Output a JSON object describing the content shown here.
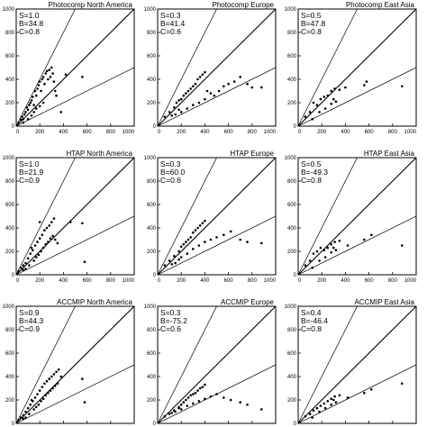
{
  "chart_data": [
    {
      "type": "scatter",
      "title": "Photocomp North America",
      "stats": [
        "S=1.0",
        "B=34.8",
        "C=0.8"
      ],
      "xlim": [
        0,
        1000
      ],
      "ylim": [
        0,
        1000
      ],
      "xticks": [
        "0",
        "200",
        "400",
        "600",
        "800",
        "1000"
      ],
      "yticks": [
        "0",
        "200",
        "400",
        "600",
        "800",
        "1000"
      ],
      "reference_lines": [
        {
          "slope": 2
        },
        {
          "slope": 1
        },
        {
          "slope": 0.5
        }
      ],
      "points": [
        [
          20,
          30
        ],
        [
          40,
          55
        ],
        [
          60,
          60
        ],
        [
          80,
          120
        ],
        [
          90,
          160
        ],
        [
          100,
          140
        ],
        [
          110,
          180
        ],
        [
          120,
          200
        ],
        [
          130,
          220
        ],
        [
          140,
          250
        ],
        [
          150,
          180
        ],
        [
          160,
          300
        ],
        [
          170,
          260
        ],
        [
          180,
          320
        ],
        [
          190,
          350
        ],
        [
          200,
          380
        ],
        [
          210,
          300
        ],
        [
          220,
          400
        ],
        [
          230,
          420
        ],
        [
          240,
          360
        ],
        [
          250,
          450
        ],
        [
          260,
          470
        ],
        [
          270,
          400
        ],
        [
          280,
          480
        ],
        [
          290,
          420
        ],
        [
          300,
          500
        ],
        [
          310,
          450
        ],
        [
          320,
          380
        ],
        [
          330,
          300
        ],
        [
          340,
          260
        ],
        [
          100,
          60
        ],
        [
          130,
          90
        ],
        [
          150,
          120
        ],
        [
          170,
          150
        ],
        [
          200,
          170
        ],
        [
          230,
          200
        ],
        [
          60,
          30
        ],
        [
          50,
          80
        ],
        [
          70,
          100
        ],
        [
          420,
          440
        ],
        [
          380,
          120
        ],
        [
          560,
          420
        ]
      ]
    },
    {
      "type": "scatter",
      "title": "Photocomp Europe",
      "stats": [
        "S=0.3",
        "B=41.4",
        "C=0.6"
      ],
      "xlim": [
        0,
        1000
      ],
      "ylim": [
        0,
        1000
      ],
      "xticks": [
        "0",
        "200",
        "400",
        "600",
        "800",
        "1000"
      ],
      "yticks": [
        "0",
        "200",
        "400",
        "600",
        "800",
        "1000"
      ],
      "reference_lines": [
        {
          "slope": 2
        },
        {
          "slope": 1
        },
        {
          "slope": 0.5
        }
      ],
      "points": [
        [
          60,
          80
        ],
        [
          100,
          120
        ],
        [
          140,
          160
        ],
        [
          160,
          200
        ],
        [
          180,
          220
        ],
        [
          200,
          230
        ],
        [
          220,
          260
        ],
        [
          240,
          280
        ],
        [
          260,
          300
        ],
        [
          280,
          320
        ],
        [
          300,
          340
        ],
        [
          320,
          360
        ],
        [
          340,
          400
        ],
        [
          360,
          420
        ],
        [
          380,
          440
        ],
        [
          400,
          460
        ],
        [
          200,
          120
        ],
        [
          250,
          150
        ],
        [
          300,
          180
        ],
        [
          350,
          200
        ],
        [
          400,
          230
        ],
        [
          420,
          300
        ],
        [
          450,
          280
        ],
        [
          480,
          260
        ],
        [
          520,
          300
        ],
        [
          560,
          340
        ],
        [
          600,
          360
        ],
        [
          650,
          380
        ],
        [
          700,
          420
        ],
        [
          760,
          360
        ],
        [
          800,
          330
        ],
        [
          880,
          330
        ],
        [
          150,
          100
        ],
        [
          120,
          90
        ],
        [
          180,
          140
        ]
      ]
    },
    {
      "type": "scatter",
      "title": "Photocomp East Asia",
      "stats": [
        "S=0.5",
        "B=47.8",
        "C=0.8"
      ],
      "xlim": [
        0,
        1000
      ],
      "ylim": [
        0,
        1000
      ],
      "xticks": [
        "0",
        "200",
        "400",
        "600",
        "800",
        "1000"
      ],
      "yticks": [
        "0",
        "200",
        "400",
        "600",
        "800",
        "1000"
      ],
      "reference_lines": [
        {
          "slope": 2
        },
        {
          "slope": 1
        },
        {
          "slope": 0.5
        }
      ],
      "points": [
        [
          60,
          80
        ],
        [
          100,
          120
        ],
        [
          130,
          200
        ],
        [
          160,
          180
        ],
        [
          190,
          230
        ],
        [
          220,
          250
        ],
        [
          250,
          260
        ],
        [
          280,
          300
        ],
        [
          310,
          320
        ],
        [
          350,
          310
        ],
        [
          180,
          120
        ],
        [
          230,
          150
        ],
        [
          280,
          190
        ],
        [
          320,
          210
        ],
        [
          400,
          330
        ],
        [
          560,
          350
        ],
        [
          580,
          380
        ],
        [
          880,
          340
        ],
        [
          120,
          60
        ],
        [
          300,
          230
        ]
      ]
    },
    {
      "type": "scatter",
      "title": "HTAP North America",
      "stats": [
        "S=1.0",
        "B=21.9",
        "C=0.9"
      ],
      "xlim": [
        0,
        1000
      ],
      "ylim": [
        0,
        1000
      ],
      "xticks": [
        "0",
        "200",
        "400",
        "600",
        "800",
        "1000"
      ],
      "yticks": [
        "0",
        "200",
        "400",
        "600",
        "800",
        "1000"
      ],
      "reference_lines": [
        {
          "slope": 2
        },
        {
          "slope": 1
        },
        {
          "slope": 0.5
        }
      ],
      "points": [
        [
          20,
          30
        ],
        [
          40,
          60
        ],
        [
          60,
          80
        ],
        [
          80,
          100
        ],
        [
          100,
          140
        ],
        [
          120,
          180
        ],
        [
          140,
          210
        ],
        [
          160,
          250
        ],
        [
          180,
          280
        ],
        [
          200,
          310
        ],
        [
          220,
          340
        ],
        [
          240,
          380
        ],
        [
          260,
          400
        ],
        [
          280,
          420
        ],
        [
          300,
          450
        ],
        [
          320,
          480
        ],
        [
          150,
          120
        ],
        [
          170,
          150
        ],
        [
          190,
          170
        ],
        [
          210,
          200
        ],
        [
          230,
          230
        ],
        [
          250,
          260
        ],
        [
          270,
          280
        ],
        [
          290,
          310
        ],
        [
          310,
          330
        ],
        [
          330,
          300
        ],
        [
          350,
          270
        ],
        [
          80,
          50
        ],
        [
          110,
          80
        ],
        [
          60,
          40
        ],
        [
          200,
          450
        ],
        [
          560,
          440
        ],
        [
          460,
          450
        ],
        [
          580,
          110
        ],
        [
          130,
          230
        ]
      ]
    },
    {
      "type": "scatter",
      "title": "HTAP Europe",
      "stats": [
        "S=0.3",
        "B=60.0",
        "C=0.6"
      ],
      "xlim": [
        0,
        1000
      ],
      "ylim": [
        0,
        1000
      ],
      "xticks": [
        "0",
        "200",
        "400",
        "600",
        "800",
        "1000"
      ],
      "yticks": [
        "0",
        "200",
        "400",
        "600",
        "800",
        "1000"
      ],
      "reference_lines": [
        {
          "slope": 2
        },
        {
          "slope": 1
        },
        {
          "slope": 0.5
        }
      ],
      "points": [
        [
          60,
          80
        ],
        [
          100,
          120
        ],
        [
          140,
          160
        ],
        [
          180,
          200
        ],
        [
          200,
          240
        ],
        [
          220,
          260
        ],
        [
          240,
          280
        ],
        [
          260,
          300
        ],
        [
          280,
          320
        ],
        [
          300,
          360
        ],
        [
          320,
          380
        ],
        [
          340,
          400
        ],
        [
          360,
          420
        ],
        [
          380,
          440
        ],
        [
          400,
          460
        ],
        [
          200,
          150
        ],
        [
          250,
          180
        ],
        [
          300,
          220
        ],
        [
          350,
          250
        ],
        [
          400,
          280
        ],
        [
          450,
          300
        ],
        [
          500,
          320
        ],
        [
          560,
          340
        ],
        [
          620,
          370
        ],
        [
          700,
          300
        ],
        [
          760,
          280
        ],
        [
          880,
          270
        ],
        [
          150,
          100
        ],
        [
          120,
          90
        ],
        [
          180,
          130
        ]
      ]
    },
    {
      "type": "scatter",
      "title": "HTAP East Asia",
      "stats": [
        "S=0.5",
        "B=-49.3",
        "C=0.8"
      ],
      "xlim": [
        0,
        1000
      ],
      "ylim": [
        0,
        1000
      ],
      "xticks": [
        "0",
        "200",
        "400",
        "600",
        "800",
        "1000"
      ],
      "yticks": [
        "0",
        "200",
        "400",
        "600",
        "800",
        "1000"
      ],
      "reference_lines": [
        {
          "slope": 2
        },
        {
          "slope": 1
        },
        {
          "slope": 0.5
        }
      ],
      "points": [
        [
          60,
          80
        ],
        [
          100,
          120
        ],
        [
          130,
          180
        ],
        [
          160,
          200
        ],
        [
          190,
          230
        ],
        [
          220,
          210
        ],
        [
          250,
          230
        ],
        [
          280,
          260
        ],
        [
          310,
          280
        ],
        [
          350,
          290
        ],
        [
          180,
          120
        ],
        [
          230,
          150
        ],
        [
          280,
          190
        ],
        [
          320,
          210
        ],
        [
          420,
          250
        ],
        [
          560,
          300
        ],
        [
          620,
          340
        ],
        [
          880,
          250
        ],
        [
          120,
          60
        ],
        [
          300,
          230
        ]
      ]
    },
    {
      "type": "scatter",
      "title": "ACCMIP North America",
      "stats": [
        "S=0.9",
        "B=44.3",
        "C=0.9"
      ],
      "xlim": [
        0,
        1000
      ],
      "ylim": [
        0,
        1000
      ],
      "xticks": [
        "0",
        "200",
        "400",
        "600",
        "800",
        "1000"
      ],
      "yticks": [
        "0",
        "200",
        "400",
        "600",
        "800",
        "1000"
      ],
      "reference_lines": [
        {
          "slope": 2
        },
        {
          "slope": 1
        },
        {
          "slope": 0.5
        }
      ],
      "points": [
        [
          20,
          30
        ],
        [
          40,
          50
        ],
        [
          60,
          70
        ],
        [
          80,
          100
        ],
        [
          100,
          130
        ],
        [
          120,
          160
        ],
        [
          140,
          190
        ],
        [
          160,
          220
        ],
        [
          180,
          250
        ],
        [
          200,
          280
        ],
        [
          220,
          310
        ],
        [
          240,
          340
        ],
        [
          260,
          360
        ],
        [
          280,
          380
        ],
        [
          300,
          400
        ],
        [
          320,
          420
        ],
        [
          340,
          440
        ],
        [
          360,
          460
        ],
        [
          150,
          120
        ],
        [
          170,
          140
        ],
        [
          190,
          160
        ],
        [
          210,
          190
        ],
        [
          230,
          210
        ],
        [
          250,
          240
        ],
        [
          270,
          260
        ],
        [
          290,
          280
        ],
        [
          310,
          300
        ],
        [
          330,
          320
        ],
        [
          350,
          340
        ],
        [
          80,
          50
        ],
        [
          110,
          80
        ],
        [
          60,
          40
        ],
        [
          380,
          400
        ],
        [
          560,
          380
        ],
        [
          580,
          180
        ],
        [
          130,
          200
        ]
      ]
    },
    {
      "type": "scatter",
      "title": "ACCMIP Europe",
      "stats": [
        "S=0.3",
        "B=-75.2",
        "C=0.6"
      ],
      "xlim": [
        0,
        1000
      ],
      "ylim": [
        0,
        1000
      ],
      "xticks": [
        "0",
        "200",
        "400",
        "600",
        "800",
        "1000"
      ],
      "yticks": [
        "0",
        "200",
        "400",
        "600",
        "800",
        "1000"
      ],
      "reference_lines": [
        {
          "slope": 2
        },
        {
          "slope": 1
        },
        {
          "slope": 0.5
        }
      ],
      "points": [
        [
          60,
          60
        ],
        [
          100,
          80
        ],
        [
          140,
          110
        ],
        [
          180,
          140
        ],
        [
          200,
          160
        ],
        [
          220,
          180
        ],
        [
          240,
          200
        ],
        [
          260,
          220
        ],
        [
          280,
          240
        ],
        [
          300,
          250
        ],
        [
          320,
          260
        ],
        [
          340,
          280
        ],
        [
          360,
          300
        ],
        [
          380,
          310
        ],
        [
          400,
          330
        ],
        [
          200,
          120
        ],
        [
          250,
          150
        ],
        [
          300,
          170
        ],
        [
          350,
          190
        ],
        [
          400,
          210
        ],
        [
          450,
          230
        ],
        [
          500,
          250
        ],
        [
          560,
          220
        ],
        [
          620,
          200
        ],
        [
          700,
          180
        ],
        [
          760,
          160
        ],
        [
          880,
          120
        ],
        [
          150,
          100
        ],
        [
          120,
          90
        ],
        [
          180,
          130
        ]
      ]
    },
    {
      "type": "scatter",
      "title": "ACCMIP East Asia",
      "stats": [
        "S=0.4",
        "B=-46.4",
        "C=0.8"
      ],
      "xlim": [
        0,
        1000
      ],
      "ylim": [
        0,
        1000
      ],
      "xticks": [
        "0",
        "200",
        "400",
        "600",
        "800",
        "1000"
      ],
      "yticks": [
        "0",
        "200",
        "400",
        "600",
        "800",
        "1000"
      ],
      "reference_lines": [
        {
          "slope": 2
        },
        {
          "slope": 1
        },
        {
          "slope": 0.5
        }
      ],
      "points": [
        [
          60,
          60
        ],
        [
          100,
          80
        ],
        [
          130,
          110
        ],
        [
          160,
          130
        ],
        [
          190,
          150
        ],
        [
          220,
          170
        ],
        [
          250,
          190
        ],
        [
          280,
          210
        ],
        [
          310,
          230
        ],
        [
          350,
          240
        ],
        [
          180,
          100
        ],
        [
          230,
          130
        ],
        [
          280,
          160
        ],
        [
          320,
          180
        ],
        [
          420,
          220
        ],
        [
          560,
          260
        ],
        [
          620,
          290
        ],
        [
          880,
          340
        ],
        [
          120,
          50
        ],
        [
          300,
          200
        ]
      ]
    }
  ]
}
